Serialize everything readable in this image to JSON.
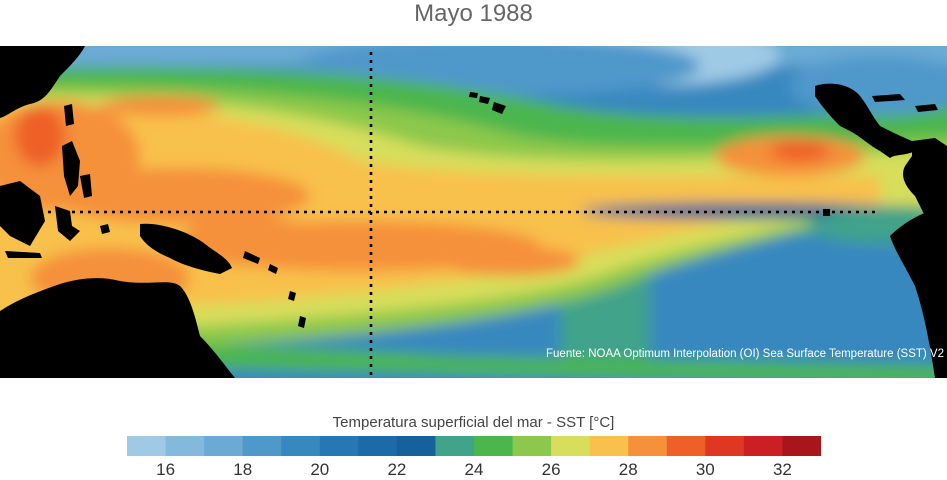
{
  "title": "Mayo 1988",
  "source": "Fuente: NOAA Optimum Interpolation (OI) Sea Surface Temperature (SST) V2",
  "colorbar": {
    "title": "Temperatura superficial del mar - SST  [°C]",
    "min": 15,
    "max": 33,
    "step": 1,
    "tick_labels": [
      "16",
      "18",
      "20",
      "22",
      "24",
      "26",
      "28",
      "30",
      "32"
    ],
    "colors": [
      "#9ecae5",
      "#83b9dc",
      "#6aaad4",
      "#4f98ca",
      "#3888c0",
      "#2677b4",
      "#1d6aa8",
      "#16609c",
      "#40a38a",
      "#4bb64e",
      "#8cc84b",
      "#d7de5c",
      "#f8c14c",
      "#f5903b",
      "#ee6028",
      "#df3822",
      "#cc1f24",
      "#a8161c"
    ]
  },
  "map": {
    "land_color": "#000000",
    "reference_lines": [
      "equator",
      "date line"
    ]
  }
}
